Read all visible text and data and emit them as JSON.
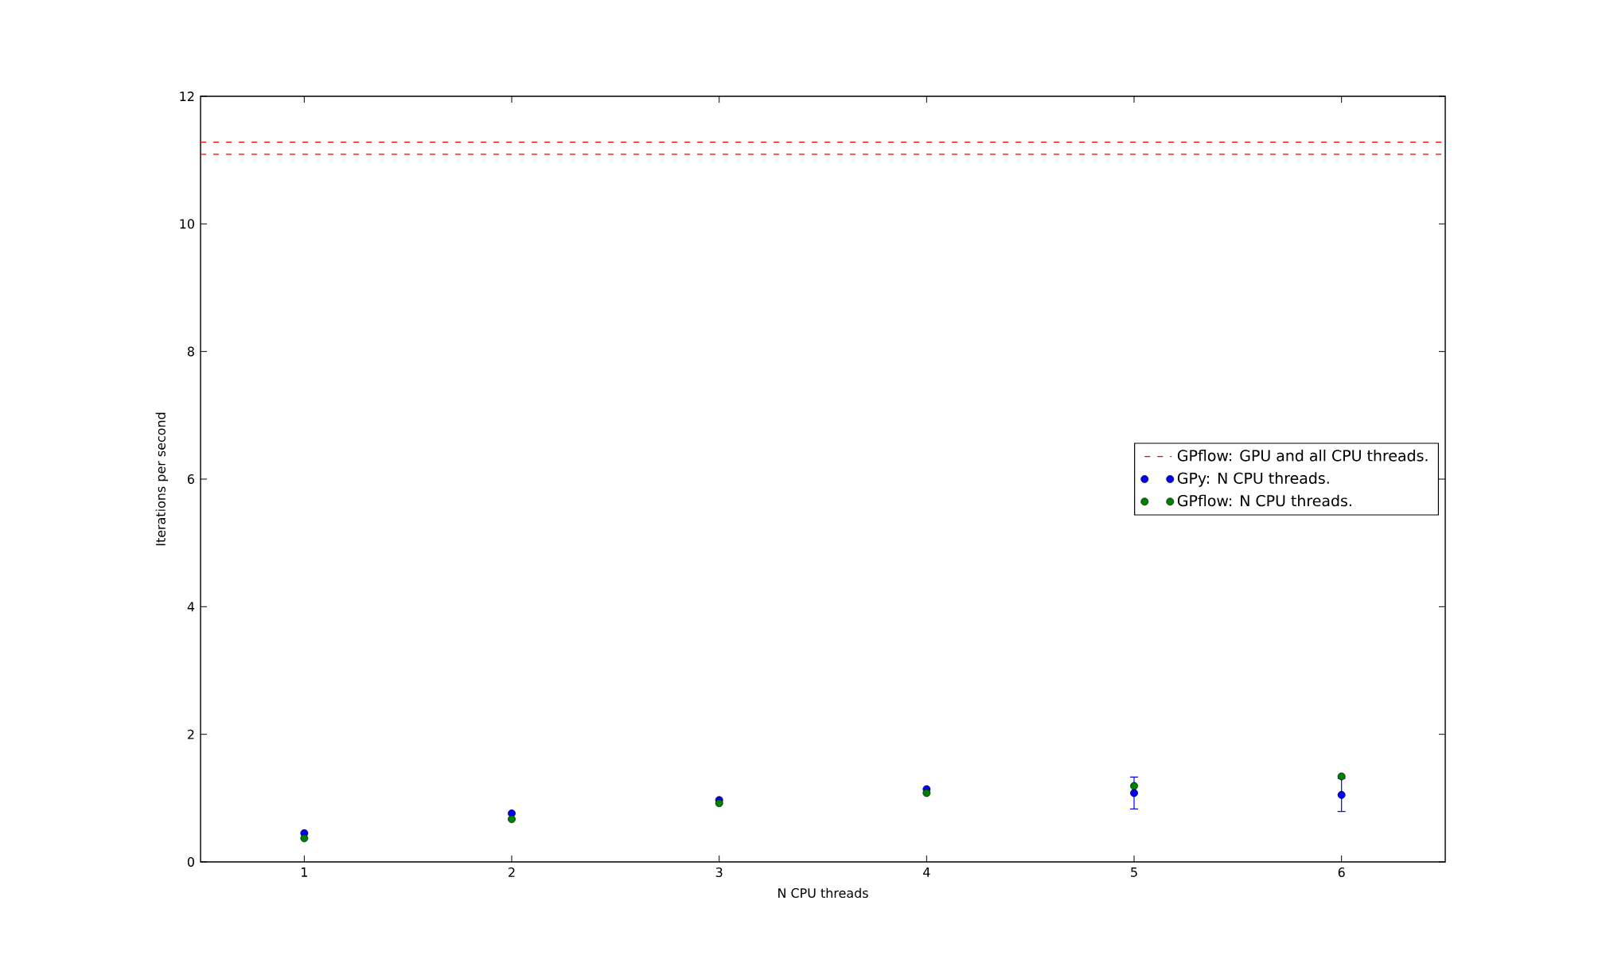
{
  "chart_data": {
    "type": "scatter",
    "xlabel": "N CPU threads",
    "ylabel": "Iterations per second",
    "x": [
      1,
      2,
      3,
      4,
      5,
      6
    ],
    "series": [
      {
        "name": "GPy: N CPU threads.",
        "color": "#0000ff",
        "values": [
          0.45,
          0.76,
          0.97,
          1.14,
          1.08,
          1.05
        ],
        "errors": [
          null,
          null,
          null,
          null,
          0.25,
          0.26
        ]
      },
      {
        "name": "GPflow: N CPU threads.",
        "color": "#008000",
        "values": [
          0.37,
          0.67,
          0.92,
          1.08,
          1.19,
          1.34
        ],
        "errors": [
          null,
          null,
          null,
          null,
          null,
          null
        ]
      }
    ],
    "ref_lines": [
      {
        "axis": "y",
        "value": 11.28,
        "label": "GPflow: GPU and all CPU threads.",
        "color": "#ff0000",
        "line_style": "dashed"
      },
      {
        "axis": "y",
        "value": 11.09,
        "color": "#ff0000",
        "line_style": "dashed"
      }
    ],
    "xlim": [
      0.5,
      6.5
    ],
    "ylim": [
      0,
      12
    ],
    "xticks": [
      1,
      2,
      3,
      4,
      5,
      6
    ],
    "yticks": [
      0,
      2,
      4,
      6,
      8,
      10,
      12
    ],
    "grid": false,
    "legend": "right",
    "marker": "circle"
  }
}
